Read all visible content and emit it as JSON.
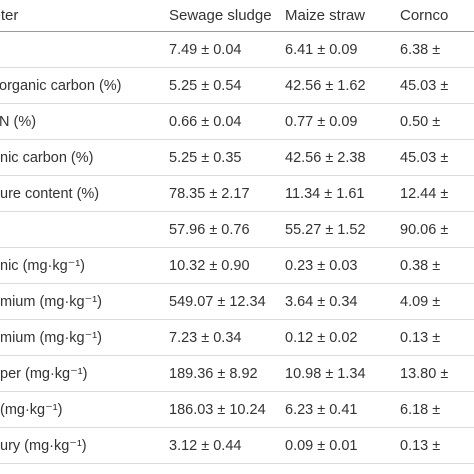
{
  "table": {
    "headers": [
      "meter",
      "Sewage sludge",
      "Maize straw",
      "Cornco"
    ],
    "rows": [
      [
        "",
        "7.49 ± 0.04",
        "6.41 ± 0.09",
        "6.38 ±"
      ],
      [
        "organic carbon (%)",
        "5.25 ± 0.54",
        "42.56 ± 1.62",
        "45.03 ±"
      ],
      [
        "N (%)",
        "0.66 ± 0.04",
        "0.77 ± 0.09",
        "0.50 ±"
      ],
      [
        "nic carbon (%)",
        "5.25 ± 0.35",
        "42.56 ± 2.38",
        "45.03 ±"
      ],
      [
        "ure content (%)",
        "78.35 ± 2.17",
        "11.34 ± 1.61",
        "12.44 ±"
      ],
      [
        "",
        "57.96 ± 0.76",
        "55.27 ± 1.52",
        "90.06 ±"
      ],
      [
        "nic (mg·kg⁻¹)",
        "10.32 ± 0.90",
        "0.23 ± 0.03",
        "0.38 ±"
      ],
      [
        "mium (mg·kg⁻¹)",
        "549.07 ± 12.34",
        "3.64 ± 0.34",
        "4.09 ±"
      ],
      [
        "mium (mg·kg⁻¹)",
        "7.23 ± 0.34",
        "0.12 ± 0.02",
        "0.13 ±"
      ],
      [
        "per (mg·kg⁻¹)",
        "189.36 ± 8.92",
        "10.98 ± 1.34",
        "13.80 ±"
      ],
      [
        "(mg·kg⁻¹)",
        "186.03 ± 10.24",
        "6.23 ± 0.41",
        "6.18 ±"
      ],
      [
        "ury (mg·kg⁻¹)",
        "3.12 ± 0.44",
        "0.09 ± 0.01",
        "0.13 ±"
      ]
    ]
  }
}
